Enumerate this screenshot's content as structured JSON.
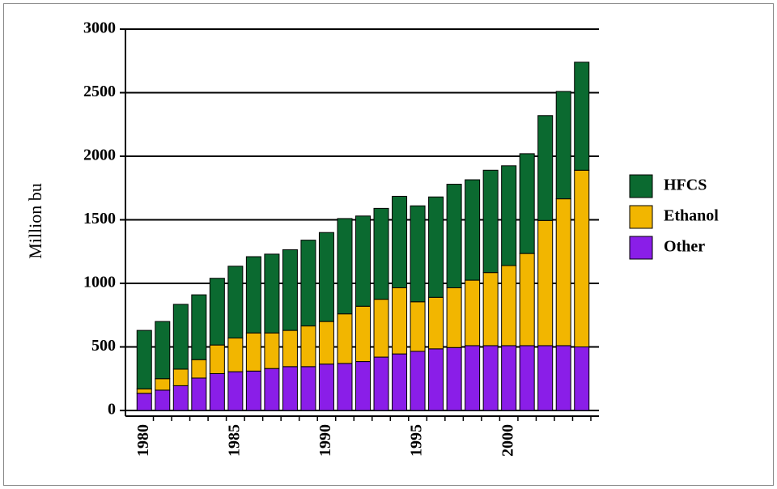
{
  "chart_data": {
    "type": "stacked-bar",
    "y_label": "Million bu",
    "categories": [
      "1980",
      null,
      null,
      null,
      null,
      "1985",
      null,
      null,
      null,
      null,
      "1990",
      null,
      null,
      null,
      null,
      "1995",
      null,
      null,
      null,
      null,
      "2000",
      null,
      null,
      null,
      null
    ],
    "series": [
      {
        "name": "HFCS",
        "color": "#0b6a30",
        "values": [
          460,
          450,
          510,
          510,
          525,
          565,
          600,
          620,
          635,
          675,
          700,
          750,
          710,
          715,
          720,
          755,
          790,
          815,
          790,
          805,
          785,
          785,
          825,
          845,
          850
        ]
      },
      {
        "name": "Ethanol",
        "color": "#f2b600",
        "values": [
          35,
          90,
          130,
          145,
          225,
          265,
          300,
          280,
          285,
          320,
          335,
          390,
          435,
          455,
          520,
          390,
          405,
          470,
          515,
          575,
          630,
          725,
          985,
          1155,
          1390
        ]
      },
      {
        "name": "Other",
        "color": "#8a1ee8",
        "values": [
          135,
          160,
          195,
          255,
          290,
          305,
          310,
          330,
          345,
          345,
          365,
          370,
          385,
          420,
          445,
          465,
          485,
          495,
          510,
          510,
          510,
          510,
          510,
          510,
          500
        ]
      }
    ],
    "ylim": [
      0,
      3000
    ],
    "yticks": [
      0,
      500,
      1000,
      1500,
      2000,
      2500,
      3000
    ],
    "grid": true
  }
}
